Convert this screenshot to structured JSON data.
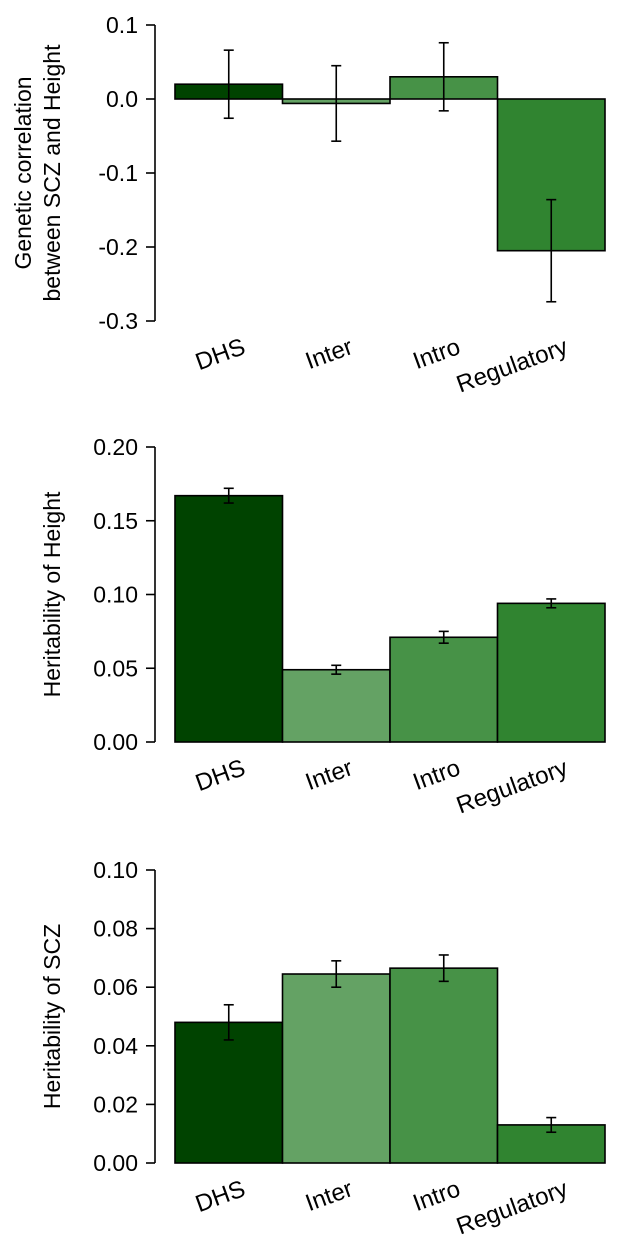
{
  "chart_data": [
    {
      "type": "bar",
      "categories": [
        "DHS",
        "Inter",
        "Intro",
        "Regulatory"
      ],
      "values": [
        0.02,
        -0.006,
        0.03,
        -0.205
      ],
      "error": [
        0.046,
        0.051,
        0.046,
        0.069
      ],
      "ylabel_lines": [
        "Genetic correlation",
        "between SCZ and Height"
      ],
      "yticks": [
        0.1,
        0.0,
        -0.1,
        -0.2,
        -0.3
      ],
      "ytick_labels": [
        "0.1",
        "0.0",
        "-0.1",
        "-0.2",
        "-0.3"
      ],
      "ylim": [
        -0.3,
        0.1
      ],
      "bar_colors": [
        "#004300",
        "#64a264",
        "#479247",
        "#308430"
      ],
      "grid": false,
      "legend": false
    },
    {
      "type": "bar",
      "categories": [
        "DHS",
        "Inter",
        "Intro",
        "Regulatory"
      ],
      "values": [
        0.167,
        0.049,
        0.071,
        0.094
      ],
      "error": [
        0.005,
        0.003,
        0.004,
        0.003
      ],
      "ylabel_lines": [
        "Heritability of Height"
      ],
      "yticks": [
        0.2,
        0.15,
        0.1,
        0.05,
        0.0
      ],
      "ytick_labels": [
        "0.20",
        "0.15",
        "0.10",
        "0.05",
        "0.00"
      ],
      "ylim": [
        0,
        0.2
      ],
      "bar_colors": [
        "#004300",
        "#64a264",
        "#479247",
        "#308430"
      ],
      "grid": false,
      "legend": false
    },
    {
      "type": "bar",
      "categories": [
        "DHS",
        "Inter",
        "Intro",
        "Regulatory"
      ],
      "values": [
        0.048,
        0.0645,
        0.0665,
        0.013
      ],
      "error": [
        0.006,
        0.0045,
        0.0045,
        0.0025
      ],
      "ylabel_lines": [
        "Heritability of SCZ"
      ],
      "yticks": [
        0.1,
        0.08,
        0.06,
        0.04,
        0.02,
        0.0
      ],
      "ytick_labels": [
        "0.10",
        "0.08",
        "0.06",
        "0.04",
        "0.02",
        "0.00"
      ],
      "ylim": [
        0,
        0.1
      ],
      "bar_colors": [
        "#004300",
        "#64a264",
        "#479247",
        "#308430"
      ],
      "grid": false,
      "legend": false
    }
  ]
}
